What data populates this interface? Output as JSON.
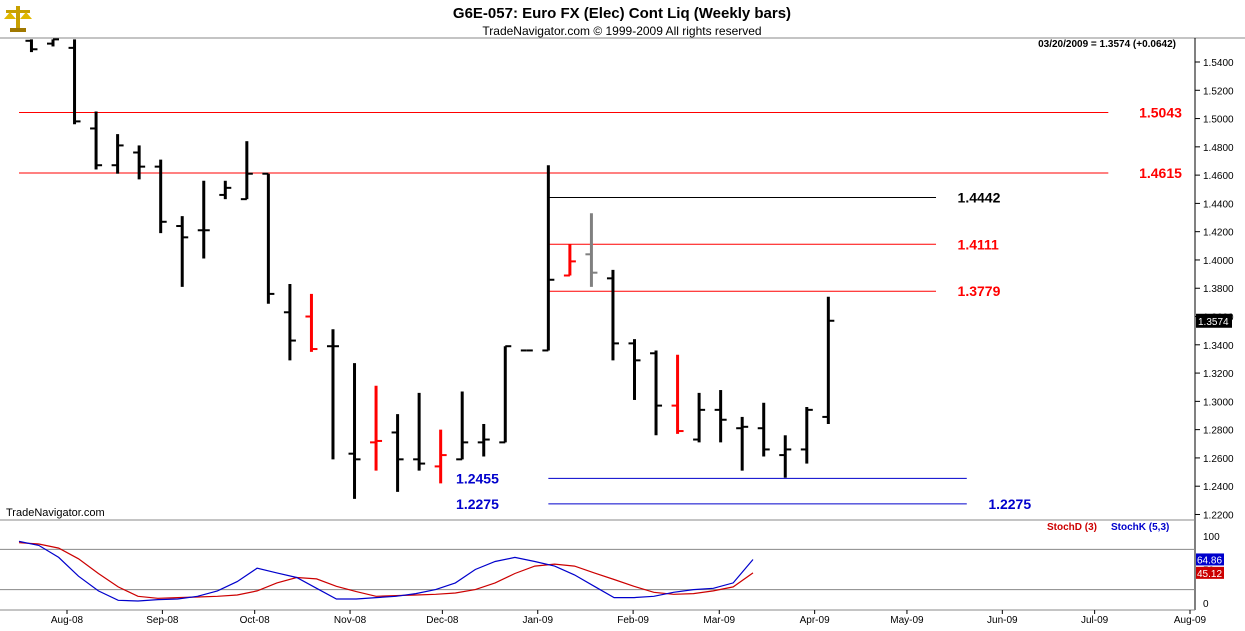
{
  "header": {
    "title": "G6E-057:  Euro FX (Elec) Cont Liq  (Weekly bars)",
    "copyright": "TradeNavigator.com © 1999-2009 All rights reserved",
    "last_quote": "03/20/2009 = 1.3574 (+0.0642)",
    "watermark": "TradeNavigator.com",
    "logo_icon": "scales-logo-icon"
  },
  "colors": {
    "bar": "#000000",
    "down_bar": "#ff0000",
    "ghost_bar": "#808080",
    "red_level": "#ff0000",
    "blue_level": "#0000cc",
    "black_level": "#000000",
    "stochD": "#cc0000",
    "stochK": "#0000cc"
  },
  "chart_data": [
    {
      "type": "ohlc",
      "title": "G6E-057:  Euro FX (Elec) Cont Liq  (Weekly bars)",
      "x_tick_labels": [
        "Aug-08",
        "Sep-08",
        "Oct-08",
        "Nov-08",
        "Dec-08",
        "Jan-09",
        "Feb-09",
        "Mar-09",
        "Apr-09",
        "May-09",
        "Jun-09",
        "Jul-09",
        "Aug-09"
      ],
      "y_tick_labels": [
        "1.5400",
        "1.5200",
        "1.5000",
        "1.4800",
        "1.4600",
        "1.4400",
        "1.4200",
        "1.4000",
        "1.3800",
        "1.3600",
        "1.3400",
        "1.3200",
        "1.3000",
        "1.2800",
        "1.2600",
        "1.2400",
        "1.2200"
      ],
      "ylim": [
        1.21,
        1.556
      ],
      "last_price_label": "1.3574",
      "bars": [
        {
          "date": "2008-07-25",
          "o": 1.555,
          "h": 1.556,
          "l": 1.547,
          "c": 1.549,
          "color": "black"
        },
        {
          "date": "2008-08-01",
          "o": 1.553,
          "h": 1.556,
          "l": 1.551,
          "c": 1.556,
          "color": "black"
        },
        {
          "date": "2008-08-08",
          "o": 1.55,
          "h": 1.556,
          "l": 1.496,
          "c": 1.498,
          "color": "black"
        },
        {
          "date": "2008-08-15",
          "o": 1.493,
          "h": 1.505,
          "l": 1.464,
          "c": 1.467,
          "color": "black"
        },
        {
          "date": "2008-08-22",
          "o": 1.467,
          "h": 1.489,
          "l": 1.461,
          "c": 1.481,
          "color": "black"
        },
        {
          "date": "2008-08-29",
          "o": 1.476,
          "h": 1.481,
          "l": 1.457,
          "c": 1.466,
          "color": "black"
        },
        {
          "date": "2008-09-05",
          "o": 1.466,
          "h": 1.471,
          "l": 1.419,
          "c": 1.427,
          "color": "black"
        },
        {
          "date": "2008-09-12",
          "o": 1.424,
          "h": 1.431,
          "l": 1.381,
          "c": 1.416,
          "color": "black"
        },
        {
          "date": "2008-09-19",
          "o": 1.421,
          "h": 1.456,
          "l": 1.401,
          "c": 1.421,
          "color": "black"
        },
        {
          "date": "2008-09-26",
          "o": 1.446,
          "h": 1.456,
          "l": 1.443,
          "c": 1.451,
          "color": "black"
        },
        {
          "date": "2008-10-03",
          "o": 1.443,
          "h": 1.484,
          "l": 1.443,
          "c": 1.461,
          "color": "black"
        },
        {
          "date": "2008-10-10",
          "o": 1.461,
          "h": 1.461,
          "l": 1.369,
          "c": 1.376,
          "color": "black"
        },
        {
          "date": "2008-10-17",
          "o": 1.363,
          "h": 1.383,
          "l": 1.329,
          "c": 1.343,
          "color": "black"
        },
        {
          "date": "2008-10-24",
          "o": 1.36,
          "h": 1.376,
          "l": 1.335,
          "c": 1.337,
          "color": "red"
        },
        {
          "date": "2008-10-31",
          "o": 1.339,
          "h": 1.351,
          "l": 1.259,
          "c": 1.339,
          "color": "black"
        },
        {
          "date": "2008-11-07",
          "o": 1.263,
          "h": 1.327,
          "l": 1.231,
          "c": 1.259,
          "color": "black"
        },
        {
          "date": "2008-11-14",
          "o": 1.271,
          "h": 1.311,
          "l": 1.251,
          "c": 1.272,
          "color": "red"
        },
        {
          "date": "2008-11-21",
          "o": 1.278,
          "h": 1.291,
          "l": 1.236,
          "c": 1.259,
          "color": "black"
        },
        {
          "date": "2008-11-28",
          "o": 1.259,
          "h": 1.306,
          "l": 1.251,
          "c": 1.256,
          "color": "black"
        },
        {
          "date": "2008-12-05",
          "o": 1.254,
          "h": 1.28,
          "l": 1.242,
          "c": 1.262,
          "color": "red"
        },
        {
          "date": "2008-12-12",
          "o": 1.259,
          "h": 1.307,
          "l": 1.259,
          "c": 1.271,
          "color": "black"
        },
        {
          "date": "2008-12-19",
          "o": 1.271,
          "h": 1.284,
          "l": 1.261,
          "c": 1.273,
          "color": "black"
        },
        {
          "date": "2008-12-26",
          "o": 1.271,
          "h": 1.339,
          "l": 1.271,
          "c": 1.339,
          "color": "black"
        },
        {
          "date": "2009-01-02",
          "o": 1.336,
          "h": 1.336,
          "l": 1.336,
          "c": 1.336,
          "color": "black"
        },
        {
          "date": "2009-01-09",
          "o": 1.336,
          "h": 1.467,
          "l": 1.336,
          "c": 1.386,
          "color": "black"
        },
        {
          "date": "2009-01-16",
          "o": 1.389,
          "h": 1.411,
          "l": 1.389,
          "c": 1.399,
          "color": "red"
        },
        {
          "date": "2009-01-23",
          "o": 1.404,
          "h": 1.433,
          "l": 1.381,
          "c": 1.391,
          "color": "gray"
        },
        {
          "date": "2009-01-30",
          "o": 1.387,
          "h": 1.393,
          "l": 1.329,
          "c": 1.341,
          "color": "black"
        },
        {
          "date": "2009-02-06",
          "o": 1.341,
          "h": 1.344,
          "l": 1.301,
          "c": 1.329,
          "color": "black"
        },
        {
          "date": "2009-02-13",
          "o": 1.334,
          "h": 1.336,
          "l": 1.276,
          "c": 1.297,
          "color": "black"
        },
        {
          "date": "2009-02-20",
          "o": 1.297,
          "h": 1.333,
          "l": 1.277,
          "c": 1.279,
          "color": "red"
        },
        {
          "date": "2009-02-27",
          "o": 1.273,
          "h": 1.306,
          "l": 1.271,
          "c": 1.294,
          "color": "black"
        },
        {
          "date": "2009-03-06",
          "o": 1.294,
          "h": 1.308,
          "l": 1.271,
          "c": 1.287,
          "color": "black"
        },
        {
          "date": "2009-03-13",
          "o": 1.281,
          "h": 1.289,
          "l": 1.251,
          "c": 1.282,
          "color": "black"
        },
        {
          "date": "2009-03-20",
          "o": 1.281,
          "h": 1.299,
          "l": 1.261,
          "c": 1.266,
          "color": "black"
        },
        {
          "date": "2009-03-27",
          "o": 1.262,
          "h": 1.276,
          "l": 1.246,
          "c": 1.266,
          "color": "black"
        },
        {
          "date": "2009-04-03",
          "o": 1.266,
          "h": 1.296,
          "l": 1.256,
          "c": 1.294,
          "color": "black"
        },
        {
          "date": "2009-04-10",
          "o": 1.289,
          "h": 1.374,
          "l": 1.284,
          "c": 1.357,
          "color": "black"
        }
      ],
      "levels": [
        {
          "value": 1.5043,
          "label": "1.5043",
          "color": "red",
          "from": "2008-07-10",
          "to": "2009-07-10",
          "label_at": "2009-07-20"
        },
        {
          "value": 1.4615,
          "label": "1.4615",
          "color": "red",
          "from": "2008-07-10",
          "to": "2009-07-10",
          "label_at": "2009-07-20"
        },
        {
          "value": 1.4442,
          "label": "1.4442",
          "color": "black",
          "from": "2009-01-09",
          "to": "2009-05-15",
          "label_at": "2009-05-22"
        },
        {
          "value": 1.4111,
          "label": "1.4111",
          "color": "red",
          "from": "2009-01-09",
          "to": "2009-05-15",
          "label_at": "2009-05-22"
        },
        {
          "value": 1.3779,
          "label": "1.3779",
          "color": "red",
          "from": "2009-01-09",
          "to": "2009-05-15",
          "label_at": "2009-05-22"
        },
        {
          "value": 1.2455,
          "label": "1.2455",
          "color": "blue",
          "from": "2009-01-09",
          "to": "2009-05-25",
          "label_at_left": "2008-12-10"
        },
        {
          "value": 1.2275,
          "label": "1.2275",
          "color": "blue",
          "from": "2009-01-09",
          "to": "2009-05-25",
          "label_at_left": "2008-12-10",
          "label_at": "2009-06-01"
        }
      ]
    },
    {
      "type": "line",
      "title": "",
      "legend": [
        "StochD (3)",
        "StochK (5,3)"
      ],
      "y_tick_labels": [
        "100",
        "50",
        "0"
      ],
      "ylim": [
        0,
        100
      ],
      "guide_lines": [
        80,
        20
      ],
      "series": [
        {
          "name": "StochD (3)",
          "color": "red",
          "last_label": "45.12",
          "values": [
            90,
            88,
            82,
            66,
            44,
            24,
            10,
            7,
            8,
            9,
            10,
            12,
            18,
            30,
            38,
            36,
            25,
            17,
            10,
            11,
            12,
            13,
            15,
            20,
            30,
            44,
            55,
            58,
            55,
            45,
            35,
            25,
            16,
            13,
            14,
            18,
            24,
            45
          ]
        },
        {
          "name": "StochK (5,3)",
          "color": "blue",
          "last_label": "64.86",
          "values": [
            92,
            86,
            68,
            40,
            18,
            4,
            3,
            5,
            6,
            10,
            18,
            32,
            52,
            45,
            38,
            22,
            6,
            6,
            8,
            10,
            14,
            20,
            30,
            50,
            62,
            68,
            62,
            55,
            42,
            25,
            8,
            8,
            10,
            16,
            20,
            22,
            30,
            65
          ]
        }
      ]
    }
  ]
}
